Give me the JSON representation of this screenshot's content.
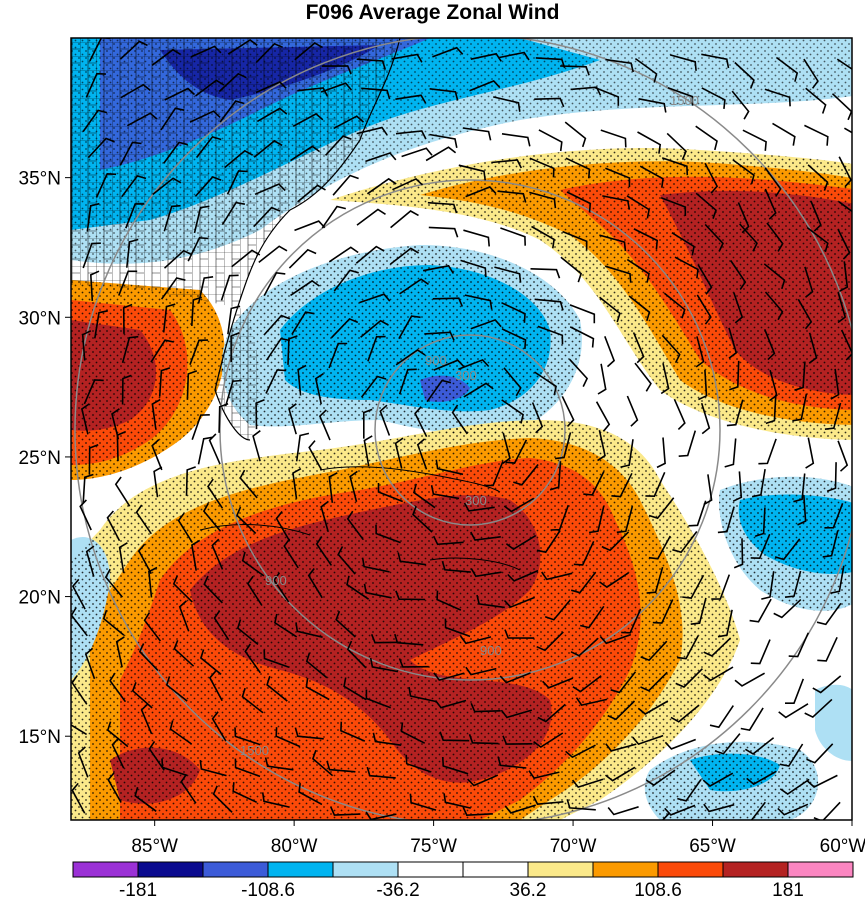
{
  "title": "F096 Average Zonal Wind",
  "map": {
    "lon_range": [
      -88,
      -60
    ],
    "lat_range": [
      12,
      40
    ],
    "lat_ticks": [
      {
        "value": 35,
        "label": "35°N"
      },
      {
        "value": 30,
        "label": "30°N"
      },
      {
        "value": 25,
        "label": "25°N"
      },
      {
        "value": 20,
        "label": "20°N"
      },
      {
        "value": 15,
        "label": "15°N"
      }
    ],
    "lon_ticks": [
      {
        "value": -85,
        "label": "85°W"
      },
      {
        "value": -80,
        "label": "80°W"
      },
      {
        "value": -75,
        "label": "75°W"
      },
      {
        "value": -70,
        "label": "70°W"
      },
      {
        "value": -65,
        "label": "65°W"
      },
      {
        "value": -60,
        "label": "60°W"
      }
    ],
    "range_rings": [
      {
        "label": "300"
      },
      {
        "label": "900"
      },
      {
        "label": "1500"
      }
    ],
    "stippling": true,
    "wind_barbs": true,
    "county_borders": true
  },
  "colorbar": {
    "colors": [
      "#9b31d6",
      "#0a0a8f",
      "#3c5bd8",
      "#00b4f0",
      "#aee0f4",
      "#ffffff",
      "#ffffff",
      "#fbe98a",
      "#fb9a00",
      "#fb4a09",
      "#b42222",
      "#fb86c1"
    ],
    "labels": [
      "-181",
      "-108.6",
      "-36.2",
      "36.2",
      "108.6",
      "181"
    ]
  }
}
